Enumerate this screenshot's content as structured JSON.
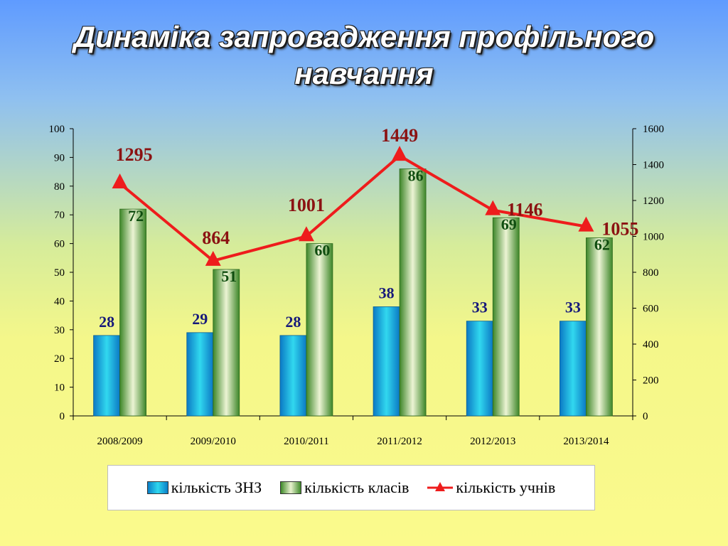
{
  "title_lines": [
    "Динаміка запровадження профільного",
    "навчання"
  ],
  "chart_data": {
    "type": "bar",
    "categories": [
      "2008/2009",
      "2009/2010",
      "2010/2011",
      "2011/2012",
      "2012/2013",
      "2013/2014"
    ],
    "series": [
      {
        "name": "кількість ЗНЗ",
        "type": "bar",
        "axis": "left",
        "values": [
          28,
          29,
          28,
          38,
          33,
          33
        ],
        "color": "#1aa8df",
        "label_color": "#16197a"
      },
      {
        "name": "кількість класів",
        "type": "bar",
        "axis": "left",
        "values": [
          72,
          51,
          60,
          86,
          69,
          62
        ],
        "color": "#5fa83c",
        "label_color": "#0f4d0f"
      },
      {
        "name": "кількість учнів",
        "type": "line",
        "axis": "right",
        "values": [
          1295,
          864,
          1001,
          1449,
          1146,
          1055
        ],
        "color": "#ee1c1c",
        "label_color": "#8b1212"
      }
    ],
    "y_left": {
      "range": [
        0,
        100
      ],
      "ticks": [
        "0",
        "10",
        "20",
        "30",
        "40",
        "50",
        "60",
        "70",
        "80",
        "90",
        "100"
      ]
    },
    "y_right": {
      "range": [
        0,
        1600
      ],
      "ticks": [
        "0",
        "200",
        "400",
        "600",
        "800",
        "1000",
        "1200",
        "1400",
        "1600"
      ]
    },
    "legend_position": "bottom",
    "grid": false
  }
}
